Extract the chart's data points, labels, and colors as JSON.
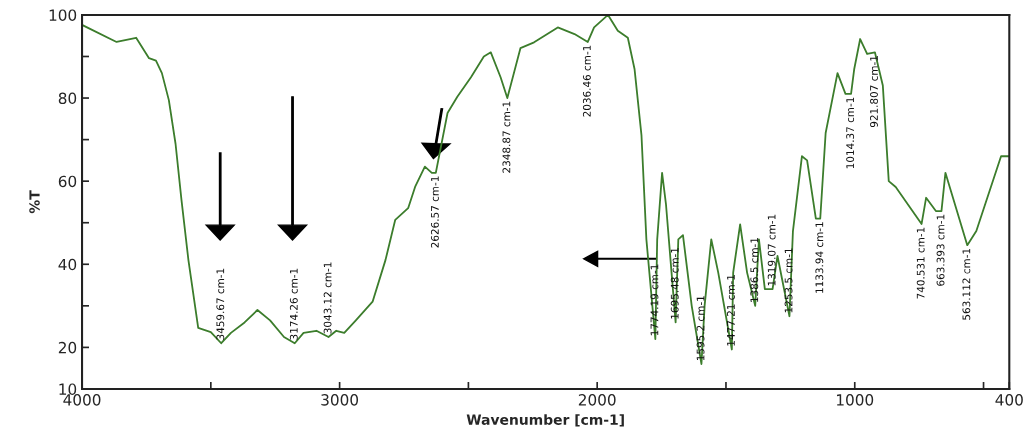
{
  "chart_data": {
    "type": "line",
    "xlabel": "Wavenumber [cm-1]",
    "ylabel": "%T",
    "xlim": [
      4000,
      400
    ],
    "xticks": [
      4000,
      {
        "value": 3500,
        "label": null
      },
      3000,
      {
        "value": 2500,
        "label": null
      },
      2000,
      {
        "value": 1500,
        "label": null
      },
      1000,
      {
        "value": 500,
        "label": null
      },
      400
    ],
    "ylim": [
      10,
      100
    ],
    "yticks": [
      10,
      20,
      {
        "value": 30,
        "label": null
      },
      40,
      {
        "value": 50,
        "label": null
      },
      60,
      {
        "value": 70,
        "label": null
      },
      80,
      {
        "value": 90,
        "label": null
      },
      100
    ],
    "grid": false,
    "legend": false,
    "series": [
      {
        "color": "#3c7d2c",
        "x": [
          4000,
          3866,
          3790,
          3740,
          3713,
          3690,
          3663,
          3637,
          3614,
          3587,
          3549,
          3500,
          3459.67,
          3422,
          3369,
          3319,
          3270,
          3216,
          3174.26,
          3140,
          3090,
          3043.12,
          3013,
          2982,
          2937,
          2872,
          2822,
          2784,
          2734,
          2707,
          2669,
          2642,
          2626.57,
          2581,
          2543,
          2490,
          2440,
          2413,
          2375,
          2348.87,
          2298,
          2245,
          2153,
          2088,
          2036.46,
          2012,
          1958,
          1920,
          1881,
          1855,
          1828,
          1809,
          1774.19,
          1767,
          1748,
          1733,
          1695.48,
          1685,
          1667,
          1633,
          1595.2,
          1583,
          1557,
          1530,
          1477.21,
          1472,
          1445,
          1418,
          1386.5,
          1372,
          1349,
          1319.07,
          1300,
          1253.5,
          1240,
          1205,
          1185,
          1151,
          1133.94,
          1113,
          1067,
          1036,
          1014.37,
          1002,
          979,
          952,
          921.807,
          891,
          868,
          841,
          740.531,
          723,
          685,
          663.393,
          648,
          563.112,
          528,
          432,
          400
        ],
        "values": [
          97.6,
          93.5,
          94.5,
          89.6,
          89,
          86,
          79.5,
          69,
          55.5,
          41,
          24.7,
          23.7,
          21,
          23.5,
          26,
          29,
          26.5,
          22.5,
          21,
          23.5,
          24,
          22.5,
          24,
          23.5,
          26.5,
          31,
          41,
          50.7,
          53.5,
          58.6,
          63.5,
          62,
          62,
          76.4,
          80.3,
          85,
          90,
          91,
          85,
          80,
          92,
          93.4,
          97,
          95.4,
          93.5,
          97,
          100,
          96.2,
          94.5,
          87,
          71,
          46,
          22,
          46,
          62,
          54.5,
          26,
          46,
          47,
          30,
          16,
          30,
          46,
          38,
          19.5,
          38,
          49.6,
          38,
          30,
          46,
          34,
          34,
          42,
          27.5,
          48,
          66,
          65,
          51,
          51,
          71.6,
          86,
          81,
          81,
          87,
          94.2,
          90.6,
          91,
          83,
          60,
          58.6,
          49.7,
          56,
          52.8,
          52.8,
          62,
          44.6,
          48,
          66,
          66
        ]
      }
    ],
    "annotations": [
      {
        "text": "3459.67 cm-1",
        "x": 3459.67,
        "y": 21
      },
      {
        "text": "3174.26 cm-1",
        "x": 3174.26,
        "y": 21
      },
      {
        "text": "3043.12 cm-1",
        "x": 3043.12,
        "y": 22.5
      },
      {
        "text": "2626.57 cm-1",
        "x": 2626.57,
        "y": 62
      },
      {
        "text": "2348.87 cm-1",
        "x": 2348.87,
        "y": 80
      },
      {
        "text": "2036.46 cm-1",
        "x": 2036.46,
        "y": 93.5
      },
      {
        "text": "1774.19 cm-1",
        "x": 1774.19,
        "y": 22
      },
      {
        "text": "1695.48 cm-1",
        "x": 1695.48,
        "y": 26
      },
      {
        "text": "1595.2 cm-1",
        "x": 1595.2,
        "y": 16
      },
      {
        "text": "1477.21 cm-1",
        "x": 1477.21,
        "y": 19.5
      },
      {
        "text": "1386.5 cm-1",
        "x": 1386.5,
        "y": 30
      },
      {
        "text": "1319.07 cm-1",
        "x": 1319.07,
        "y": 34
      },
      {
        "text": "1253.5 cm-1",
        "x": 1253.5,
        "y": 27.5
      },
      {
        "text": "1133.94 cm-1",
        "x": 1133.94,
        "y": 51
      },
      {
        "text": "1014.37 cm-1",
        "x": 1014.37,
        "y": 81
      },
      {
        "text": "921.807 cm-1",
        "x": 921.807,
        "y": 91
      },
      {
        "text": "740.531 cm-1",
        "x": 740.531,
        "y": 49.7
      },
      {
        "text": "663.393 cm-1",
        "x": 663.393,
        "y": 52.8
      },
      {
        "text": "563.112 cm-1",
        "x": 563.112,
        "y": 44.6
      }
    ]
  }
}
